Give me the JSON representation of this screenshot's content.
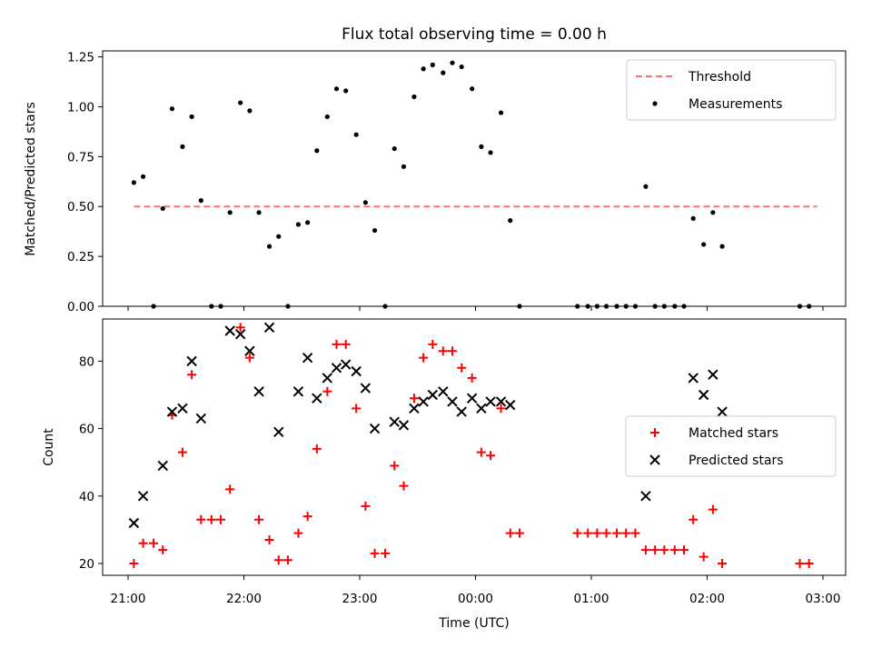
{
  "title": "Flux total observing time = 0.00 h",
  "chart_data": [
    {
      "type": "scatter",
      "ylabel": "Matched/Predicted stars",
      "xlabel": "",
      "ylim": [
        0,
        1.28
      ],
      "yticks": [
        "0.00",
        "0.25",
        "0.50",
        "0.75",
        "1.00",
        "1.25"
      ],
      "legend_position": "top-right",
      "threshold": {
        "name": "Threshold",
        "value": 0.5,
        "x_start": 21.05,
        "x_end": 26.95,
        "color": "#ff7070",
        "style": "dashed"
      },
      "series": [
        {
          "name": "Measurements",
          "color": "#000000",
          "marker": "dot",
          "x": [
            21.05,
            21.13,
            21.22,
            21.3,
            21.38,
            21.47,
            21.55,
            21.63,
            21.72,
            21.8,
            21.88,
            21.97,
            22.05,
            22.13,
            22.22,
            22.3,
            22.38,
            22.47,
            22.55,
            22.63,
            22.72,
            22.8,
            22.88,
            22.97,
            23.05,
            23.13,
            23.22,
            23.3,
            23.38,
            23.47,
            23.55,
            23.63,
            23.72,
            23.8,
            23.88,
            23.97,
            24.05,
            24.13,
            24.22,
            24.3,
            24.38,
            24.88,
            24.97,
            25.05,
            25.13,
            25.22,
            25.3,
            25.38,
            25.47,
            25.55,
            25.63,
            25.72,
            25.8,
            25.88,
            25.97,
            26.05,
            26.13,
            26.8,
            26.88
          ],
          "y": [
            0.62,
            0.65,
            0.0,
            0.49,
            0.99,
            0.8,
            0.95,
            0.53,
            0.0,
            0.0,
            0.47,
            1.02,
            0.98,
            0.47,
            0.3,
            0.35,
            0.0,
            0.41,
            0.42,
            0.78,
            0.95,
            1.09,
            1.08,
            0.86,
            0.52,
            0.38,
            0.0,
            0.79,
            0.7,
            1.05,
            1.19,
            1.21,
            1.17,
            1.22,
            1.2,
            1.09,
            0.8,
            0.77,
            0.97,
            0.43,
            0.0,
            0.0,
            0.0,
            0.0,
            0.0,
            0.0,
            0.0,
            0.0,
            0.6,
            0.0,
            0.0,
            0.0,
            0.0,
            0.44,
            0.31,
            0.47,
            0.3,
            0.0,
            0.0
          ]
        }
      ]
    },
    {
      "type": "scatter",
      "xlabel": "Time (UTC)",
      "ylabel": "Count",
      "ylim": [
        16.5,
        92.5
      ],
      "yticks": [
        "20",
        "40",
        "60",
        "80"
      ],
      "xticks": [
        "21:00",
        "22:00",
        "23:00",
        "00:00",
        "01:00",
        "02:00",
        "03:00"
      ],
      "legend_position": "center-right",
      "series": [
        {
          "name": "Matched stars",
          "color": "#ff0000",
          "marker": "plus",
          "x": [
            21.05,
            21.13,
            21.22,
            21.3,
            21.38,
            21.47,
            21.55,
            21.63,
            21.72,
            21.8,
            21.88,
            21.97,
            22.05,
            22.13,
            22.22,
            22.3,
            22.38,
            22.47,
            22.55,
            22.63,
            22.72,
            22.8,
            22.88,
            22.97,
            23.05,
            23.13,
            23.22,
            23.3,
            23.38,
            23.47,
            23.55,
            23.63,
            23.72,
            23.8,
            23.88,
            23.97,
            24.05,
            24.13,
            24.22,
            24.3,
            24.38,
            24.88,
            24.97,
            25.05,
            25.13,
            25.22,
            25.3,
            25.38,
            25.47,
            25.55,
            25.63,
            25.72,
            25.8,
            25.88,
            25.97,
            26.05,
            26.13,
            26.8,
            26.88
          ],
          "y": [
            20,
            26,
            26,
            24,
            64,
            53,
            76,
            33,
            33,
            33,
            42,
            90,
            81,
            33,
            27,
            21,
            21,
            29,
            34,
            54,
            71,
            85,
            85,
            66,
            37,
            23,
            23,
            49,
            43,
            69,
            81,
            85,
            83,
            83,
            78,
            75,
            53,
            52,
            66,
            29,
            29,
            29,
            29,
            29,
            29,
            29,
            29,
            29,
            24,
            24,
            24,
            24,
            24,
            33,
            22,
            36,
            20,
            20,
            20
          ]
        },
        {
          "name": "Predicted stars",
          "color": "#000000",
          "marker": "x",
          "x": [
            21.05,
            21.13,
            21.3,
            21.38,
            21.47,
            21.55,
            21.63,
            21.88,
            21.97,
            22.05,
            22.13,
            22.22,
            22.3,
            22.47,
            22.55,
            22.63,
            22.72,
            22.8,
            22.88,
            22.97,
            23.05,
            23.13,
            23.3,
            23.38,
            23.47,
            23.55,
            23.63,
            23.72,
            23.8,
            23.88,
            23.97,
            24.05,
            24.13,
            24.22,
            24.3,
            25.47,
            25.88,
            25.97,
            26.05,
            26.13
          ],
          "y": [
            32,
            40,
            49,
            65,
            66,
            80,
            63,
            89,
            88,
            83,
            71,
            90,
            59,
            71,
            81,
            69,
            75,
            78,
            79,
            77,
            72,
            60,
            62,
            61,
            66,
            68,
            70,
            71,
            68,
            65,
            69,
            66,
            68,
            68,
            67,
            40,
            75,
            70,
            76,
            65
          ]
        }
      ]
    }
  ]
}
